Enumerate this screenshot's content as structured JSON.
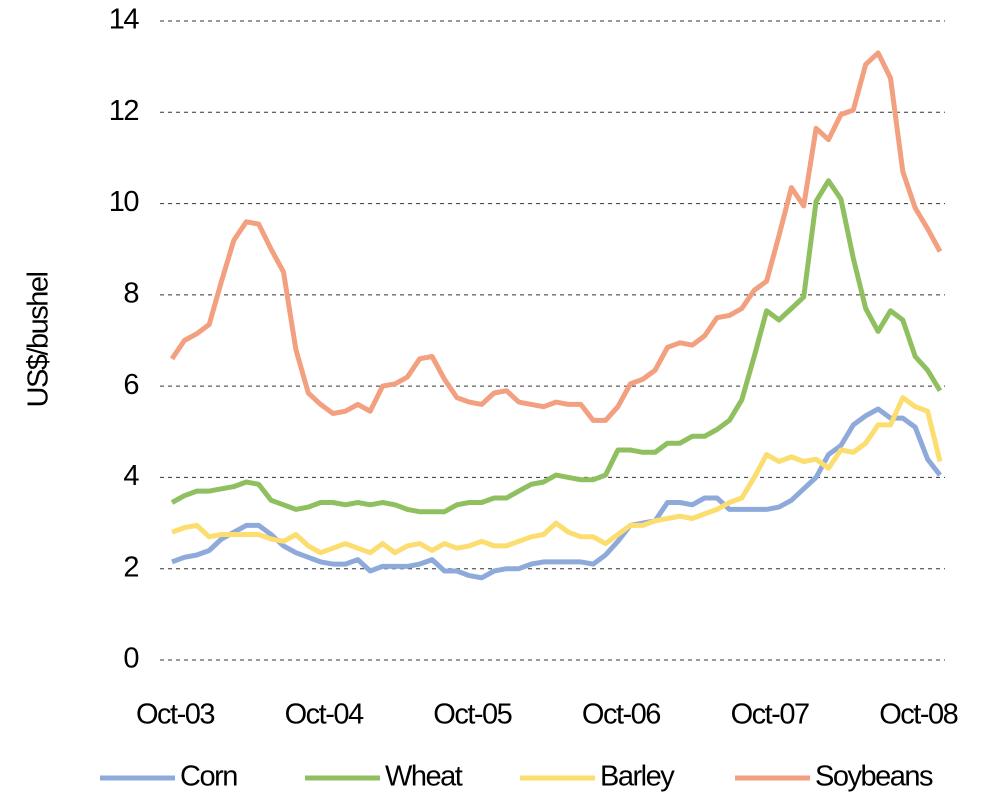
{
  "chart_data": {
    "type": "line",
    "y_label": "US$/bushel",
    "categories": [
      "Oct-03",
      null,
      null,
      null,
      null,
      null,
      null,
      null,
      null,
      null,
      null,
      null,
      "Oct-04",
      null,
      null,
      null,
      null,
      null,
      null,
      null,
      null,
      null,
      null,
      null,
      "Oct-05",
      null,
      null,
      null,
      null,
      null,
      null,
      null,
      null,
      null,
      null,
      null,
      "Oct-06",
      null,
      null,
      null,
      null,
      null,
      null,
      null,
      null,
      null,
      null,
      null,
      "Oct-07",
      null,
      null,
      null,
      null,
      null,
      null,
      null,
      null,
      null,
      null,
      null,
      "Oct-08",
      null,
      null
    ],
    "ylim": [
      0,
      14
    ],
    "yticks": [
      0,
      2,
      4,
      6,
      8,
      10,
      12,
      14
    ],
    "grid": true,
    "legend": "bottom",
    "series": [
      {
        "name": "Corn",
        "color": "#8eaadb",
        "values": [
          2.15,
          2.25,
          2.3,
          2.4,
          2.65,
          2.8,
          2.95,
          2.95,
          2.75,
          2.5,
          2.35,
          2.25,
          2.15,
          2.1,
          2.1,
          2.2,
          1.95,
          2.05,
          2.05,
          2.05,
          2.1,
          2.2,
          1.95,
          1.95,
          1.85,
          1.8,
          1.95,
          2.0,
          2.0,
          2.1,
          2.15,
          2.15,
          2.15,
          2.15,
          2.1,
          2.3,
          2.6,
          2.95,
          3.0,
          3.05,
          3.45,
          3.45,
          3.4,
          3.55,
          3.55,
          3.3,
          3.3,
          3.3,
          3.3,
          3.35,
          3.5,
          3.75,
          4.0,
          4.5,
          4.7,
          5.15,
          5.35,
          5.5,
          5.3,
          5.3,
          5.1,
          4.4,
          4.05
        ]
      },
      {
        "name": "Wheat",
        "color": "#8fbf5f",
        "values": [
          3.45,
          3.6,
          3.7,
          3.7,
          3.75,
          3.8,
          3.9,
          3.85,
          3.5,
          3.4,
          3.3,
          3.35,
          3.45,
          3.45,
          3.4,
          3.45,
          3.4,
          3.45,
          3.4,
          3.3,
          3.25,
          3.25,
          3.25,
          3.4,
          3.45,
          3.45,
          3.55,
          3.55,
          3.7,
          3.85,
          3.9,
          4.05,
          4.0,
          3.95,
          3.95,
          4.05,
          4.6,
          4.6,
          4.55,
          4.55,
          4.75,
          4.75,
          4.9,
          4.9,
          5.05,
          5.25,
          5.7,
          6.65,
          7.65,
          7.45,
          7.7,
          7.95,
          10.05,
          10.5,
          10.1,
          8.8,
          7.7,
          7.2,
          7.65,
          7.45,
          6.65,
          6.35,
          5.9
        ]
      },
      {
        "name": "Barley",
        "color": "#fbdd70",
        "values": [
          2.8,
          2.9,
          2.95,
          2.7,
          2.75,
          2.75,
          2.75,
          2.75,
          2.65,
          2.6,
          2.75,
          2.5,
          2.35,
          2.45,
          2.55,
          2.45,
          2.35,
          2.55,
          2.35,
          2.5,
          2.55,
          2.4,
          2.55,
          2.45,
          2.5,
          2.6,
          2.5,
          2.5,
          2.6,
          2.7,
          2.75,
          3.0,
          2.8,
          2.7,
          2.7,
          2.55,
          2.75,
          2.95,
          2.95,
          3.05,
          3.1,
          3.15,
          3.1,
          3.2,
          3.3,
          3.45,
          3.55,
          4.0,
          4.5,
          4.35,
          4.45,
          4.35,
          4.4,
          4.2,
          4.6,
          4.55,
          4.75,
          5.15,
          5.15,
          5.75,
          5.55,
          5.45,
          4.35
        ]
      },
      {
        "name": "Soybeans",
        "color": "#f2a07f",
        "values": [
          6.6,
          7.0,
          7.15,
          7.35,
          8.3,
          9.2,
          9.6,
          9.55,
          9.0,
          8.5,
          6.8,
          5.85,
          5.6,
          5.4,
          5.45,
          5.6,
          5.45,
          6.0,
          6.05,
          6.2,
          6.6,
          6.65,
          6.15,
          5.75,
          5.65,
          5.6,
          5.85,
          5.9,
          5.65,
          5.6,
          5.55,
          5.65,
          5.6,
          5.6,
          5.25,
          5.25,
          5.55,
          6.05,
          6.15,
          6.35,
          6.85,
          6.95,
          6.9,
          7.1,
          7.5,
          7.55,
          7.7,
          8.1,
          8.3,
          9.3,
          10.35,
          9.95,
          11.65,
          11.4,
          11.95,
          12.05,
          13.05,
          13.3,
          12.75,
          10.7,
          9.9,
          9.45,
          8.95
        ]
      }
    ]
  }
}
